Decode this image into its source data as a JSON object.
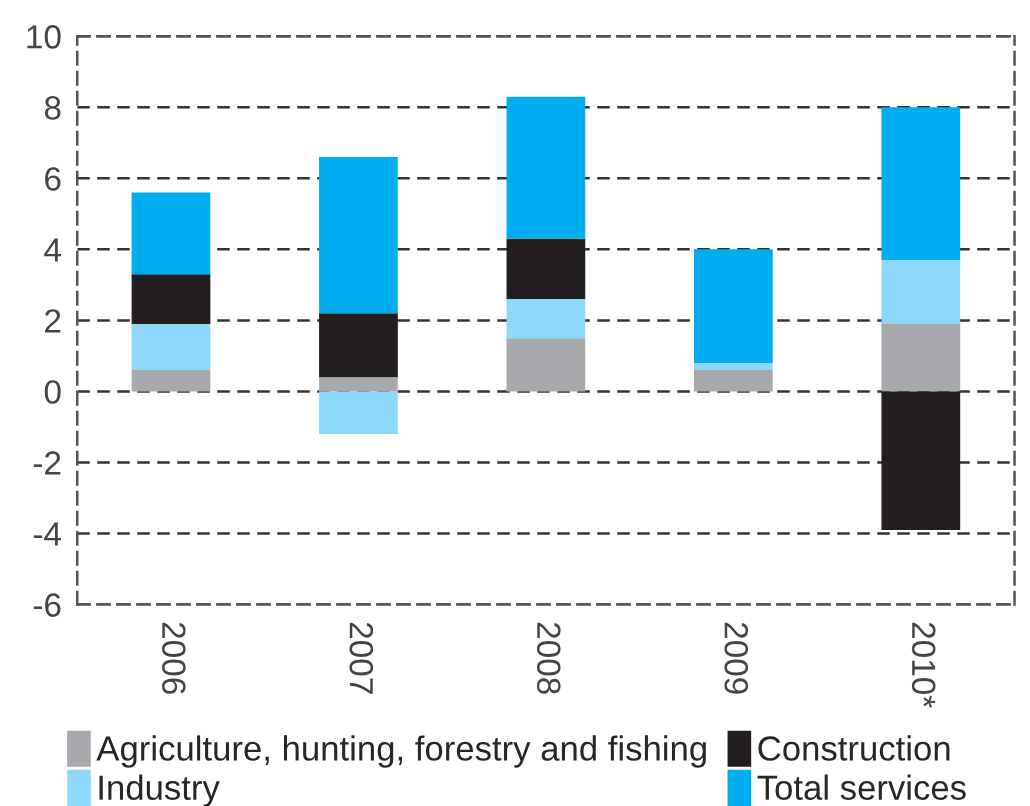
{
  "chart_data": {
    "type": "bar",
    "stacked": true,
    "categories": [
      "2006",
      "2007",
      "2008",
      "2009",
      "2010*"
    ],
    "series": [
      {
        "name": "Agriculture, hunting, forestry and fishing",
        "color": "#a7a9ac",
        "values": [
          0.6,
          0.4,
          1.5,
          0.6,
          1.9
        ]
      },
      {
        "name": "Industry",
        "color": "#8dd8f8",
        "values": [
          1.3,
          -1.2,
          1.1,
          0.2,
          1.8
        ]
      },
      {
        "name": "Construction",
        "color": "#231f20",
        "values": [
          1.4,
          1.8,
          1.7,
          0,
          -3.9
        ]
      },
      {
        "name": "Total services",
        "color": "#00aeef",
        "values": [
          2.3,
          4.4,
          4.0,
          3.2,
          4.3
        ]
      }
    ],
    "ylim": [
      -6,
      10
    ],
    "yticks": [
      -6,
      -4,
      -2,
      0,
      2,
      4,
      6,
      8,
      10
    ],
    "grid": "y",
    "legend": "bottom"
  }
}
